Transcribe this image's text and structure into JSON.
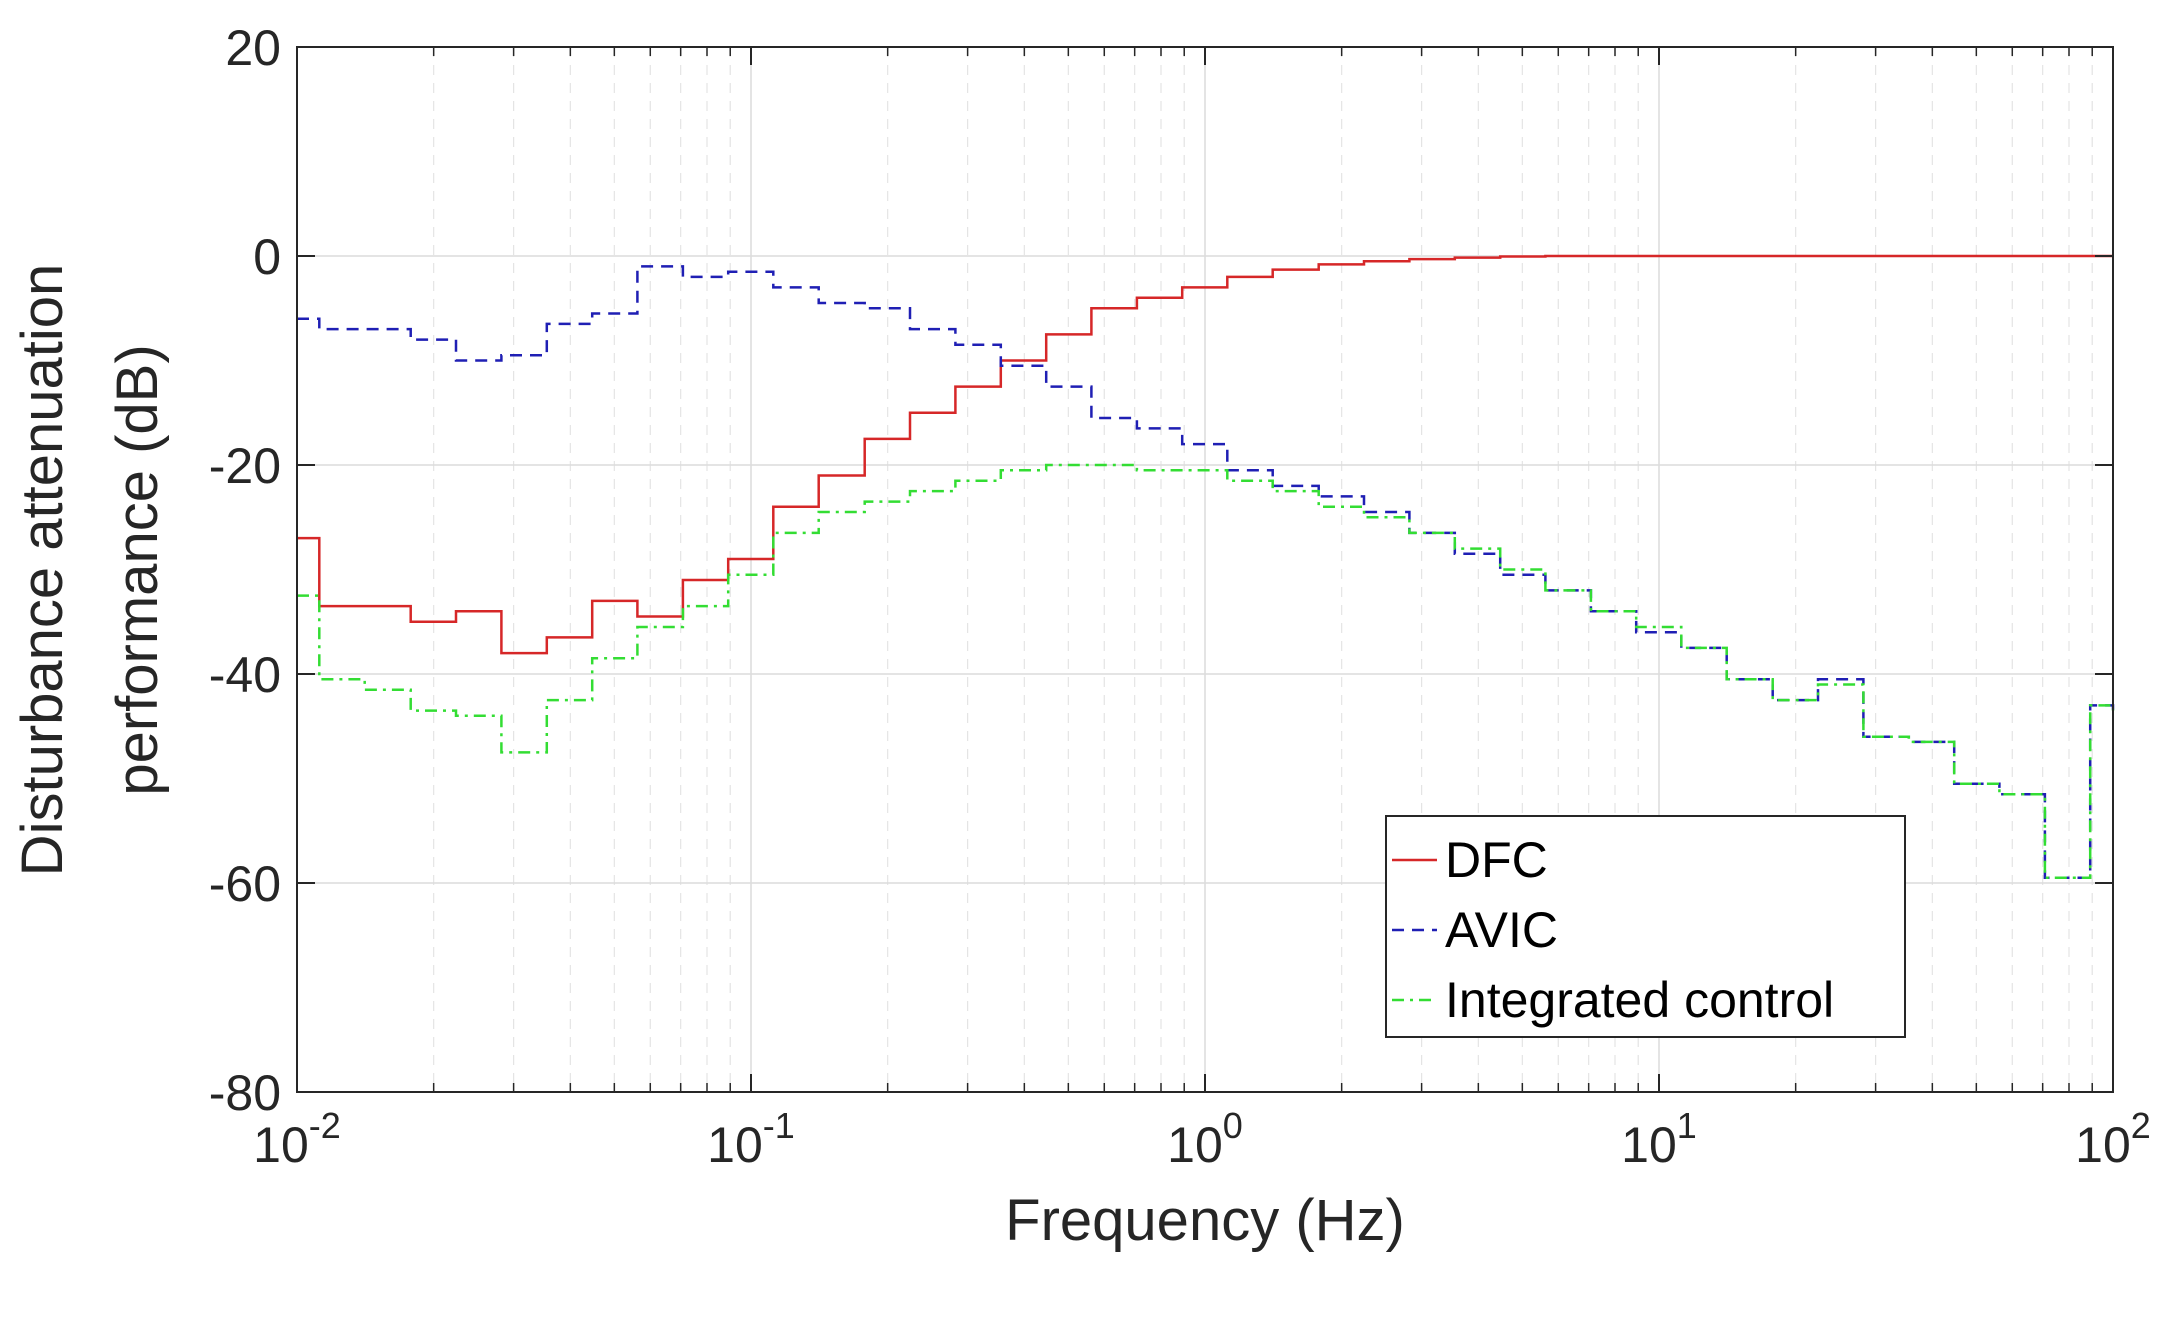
{
  "chart_data": {
    "type": "line",
    "title": "",
    "xlabel": "Frequency (Hz)",
    "ylabel_lines": [
      "Disturbance attenuation",
      "performance (dB)"
    ],
    "xscale": "log",
    "xlim": [
      0.01,
      100
    ],
    "ylim": [
      -80,
      20
    ],
    "yticks": [
      20,
      0,
      -20,
      -40,
      -60,
      -80
    ],
    "xticks": [
      {
        "value": 0.01,
        "base": "10",
        "exp": "-2"
      },
      {
        "value": 0.1,
        "base": "10",
        "exp": "-1"
      },
      {
        "value": 1,
        "base": "10",
        "exp": "0"
      },
      {
        "value": 10,
        "base": "10",
        "exp": "1"
      },
      {
        "value": 100,
        "base": "10",
        "exp": "2"
      }
    ],
    "grid": true,
    "legend_position": "bottom-right",
    "series": [
      {
        "name": "DFC",
        "color": "#d62728",
        "style": "solid",
        "x": [
          0.01,
          0.0112,
          0.0178,
          0.0224,
          0.0282,
          0.0355,
          0.0447,
          0.0562,
          0.0708,
          0.0891,
          0.112,
          0.141,
          0.178,
          0.224,
          0.282,
          0.355,
          0.447,
          0.562,
          0.708,
          0.891,
          1.12,
          1.41,
          1.78,
          2.24,
          2.82,
          3.55,
          4.47,
          5.62,
          10,
          100
        ],
        "y": [
          -27,
          -33.5,
          -35,
          -34,
          -38,
          -36.5,
          -33,
          -34.5,
          -31,
          -29,
          -24,
          -21,
          -17.5,
          -15,
          -12.5,
          -10,
          -7.5,
          -5,
          -4,
          -3,
          -2,
          -1.3,
          -0.8,
          -0.5,
          -0.3,
          -0.15,
          -0.05,
          0,
          0,
          0
        ]
      },
      {
        "name": "AVIC",
        "color": "#1f1fb4",
        "style": "dashed",
        "x": [
          0.01,
          0.0112,
          0.0178,
          0.0224,
          0.0282,
          0.0355,
          0.0447,
          0.0562,
          0.0708,
          0.0891,
          0.112,
          0.141,
          0.178,
          0.224,
          0.282,
          0.355,
          0.447,
          0.562,
          0.708,
          0.891,
          1.12,
          1.41,
          1.78,
          2.24,
          2.82,
          3.55,
          4.47,
          5.62,
          7.08,
          8.91,
          11.2,
          14.1,
          17.8,
          22.4,
          28.2,
          35.5,
          44.7,
          56.2,
          70.8,
          89.1,
          100
        ],
        "y": [
          -6,
          -7,
          -8,
          -10,
          -9.5,
          -6.5,
          -5.5,
          -1,
          -2,
          -1.5,
          -3,
          -4.5,
          -5,
          -7,
          -8.5,
          -10.5,
          -12.5,
          -15.5,
          -16.5,
          -18,
          -20.5,
          -22,
          -23,
          -24.5,
          -26.5,
          -28.5,
          -30.5,
          -32,
          -34,
          -36,
          -37.5,
          -40.5,
          -42.5,
          -40.5,
          -46,
          -46.5,
          -50.5,
          -51.5,
          -59.5,
          -43,
          -43.5
        ]
      },
      {
        "name": "Integrated control",
        "color": "#33dd33",
        "style": "dashdot",
        "x": [
          0.01,
          0.0112,
          0.0141,
          0.0178,
          0.0224,
          0.0282,
          0.0355,
          0.0447,
          0.0562,
          0.0708,
          0.0891,
          0.112,
          0.141,
          0.178,
          0.224,
          0.282,
          0.355,
          0.447,
          0.562,
          0.708,
          0.891,
          1.12,
          1.41,
          1.78,
          2.24,
          2.82,
          3.55,
          4.47,
          5.62,
          7.08,
          8.91,
          11.2,
          14.1,
          17.8,
          22.4,
          28.2,
          35.5,
          44.7,
          56.2,
          70.8,
          89.1,
          100
        ],
        "y": [
          -32.5,
          -40.5,
          -41.5,
          -43.5,
          -44,
          -47.5,
          -42.5,
          -38.5,
          -35.5,
          -33.5,
          -30.5,
          -26.5,
          -24.5,
          -23.5,
          -22.5,
          -21.5,
          -20.5,
          -20,
          -20,
          -20.5,
          -20.5,
          -21.5,
          -22.5,
          -24,
          -25,
          -26.5,
          -28,
          -30,
          -32,
          -34,
          -35.5,
          -37.5,
          -40.5,
          -42.5,
          -41,
          -46,
          -46.5,
          -50.5,
          -51.5,
          -59.5,
          -43,
          -43.5
        ]
      }
    ]
  }
}
